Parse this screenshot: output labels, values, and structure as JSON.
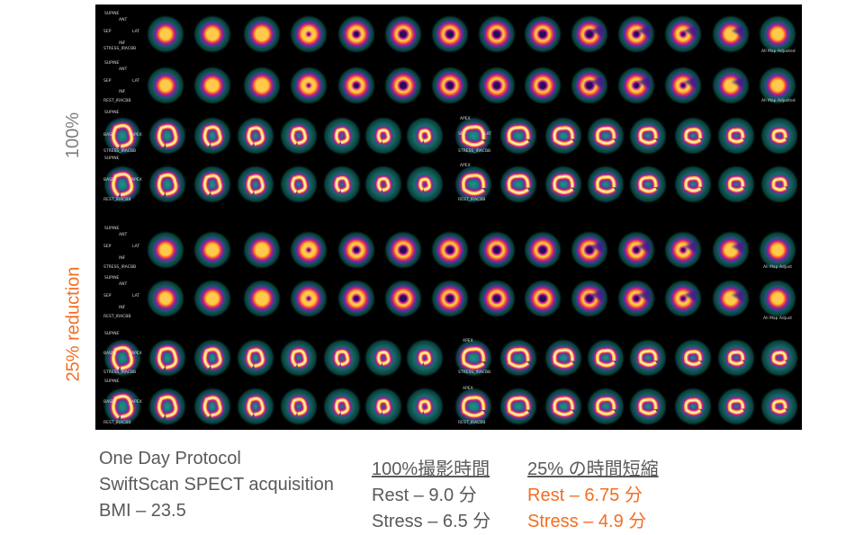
{
  "side_labels": {
    "full": "100%",
    "reduced": "25% reduction"
  },
  "protocol": {
    "line1": "One Day Protocol",
    "line2": "SwiftScan SPECT acquisition",
    "line3": "BMI – 23.5"
  },
  "full_time": {
    "header": "100%撮影時間",
    "rest": "Rest – 9.0 分",
    "stress": "Stress – 6.5 分"
  },
  "reduced_time": {
    "header": "25% の時間短縮",
    "rest": "Rest – 6.75 分",
    "stress": "Stress – 4.9 分"
  },
  "scan_labels": {
    "supine": "SUPINE",
    "ant": "ANT",
    "sep": "SEP",
    "lat": "LAT",
    "inf": "INF",
    "base": "BASE",
    "apex": "APEX",
    "stress_sa": "STRESS_IRACBB",
    "rest_sa": "REST_IRACBB",
    "stress_sa_red": "STRESS_IRACBB",
    "rest_sa_red": "REST_IRACBB",
    "stress_hla": "STRESS_IRACBB",
    "rest_hla": "REST_IRACBB",
    "stress_hla_red": "STRESS_IRACBB",
    "rest_hla_red": "REST_IRACBB",
    "all_adjusted": "All Map Adjusted",
    "all_adjusted_red": "All Map Adjust"
  },
  "colors": {
    "panel": "#000000",
    "gray_label": "#7f7f7f",
    "orange": "#f36e21",
    "text_gray": "#595959"
  }
}
